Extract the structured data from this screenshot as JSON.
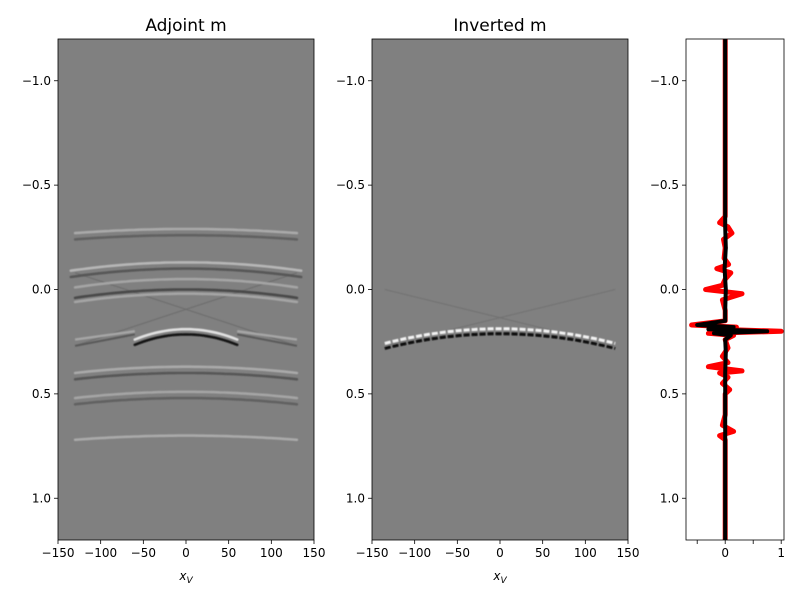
{
  "chart_data": [
    {
      "type": "heatmap",
      "title": "Adjoint m",
      "xlabel": "x",
      "xlabel_sub": "V",
      "xlim": [
        -150,
        150
      ],
      "ylim": [
        1.2,
        -1.2
      ],
      "xticks": [
        -150,
        -100,
        -50,
        0,
        50,
        100,
        150
      ],
      "yticks": [
        -1.0,
        -0.5,
        0.0,
        0.5,
        1.0
      ],
      "colormap": "gray",
      "events": [
        {
          "y": -0.29,
          "amp": 0.35,
          "half_width": 130,
          "curvature": 0.02
        },
        {
          "y": -0.26,
          "amp": -0.25,
          "half_width": 130,
          "curvature": 0.02
        },
        {
          "y": -0.13,
          "amp": 0.45,
          "half_width": 135,
          "curvature": 0.04
        },
        {
          "y": -0.1,
          "amp": -0.35,
          "half_width": 135,
          "curvature": 0.04
        },
        {
          "y": -0.05,
          "amp": 0.3,
          "half_width": 130,
          "curvature": 0.04
        },
        {
          "y": 0.0,
          "amp": -0.45,
          "half_width": 130,
          "curvature": 0.04
        },
        {
          "y": 0.02,
          "amp": 0.3,
          "half_width": 130,
          "curvature": 0.04
        },
        {
          "y": 0.19,
          "amp": 0.8,
          "half_width": 60,
          "curvature": 0.05
        },
        {
          "y": 0.215,
          "amp": -0.9,
          "half_width": 60,
          "curvature": 0.05
        },
        {
          "y": 0.37,
          "amp": 0.35,
          "half_width": 130,
          "curvature": 0.03
        },
        {
          "y": 0.4,
          "amp": -0.35,
          "half_width": 130,
          "curvature": 0.03
        },
        {
          "y": 0.49,
          "amp": 0.3,
          "half_width": 130,
          "curvature": 0.03
        },
        {
          "y": 0.52,
          "amp": -0.25,
          "half_width": 130,
          "curvature": 0.03
        },
        {
          "y": 0.7,
          "amp": 0.35,
          "half_width": 130,
          "curvature": 0.02
        }
      ],
      "flank_events": [
        {
          "y": 0.2,
          "amp": 0.3,
          "x_from": -130,
          "x_to": -60,
          "slope": 0.001
        },
        {
          "y": 0.2,
          "amp": 0.3,
          "x_from": 60,
          "x_to": 130,
          "slope": -0.001
        }
      ],
      "crossing_lines": [
        {
          "x1": -130,
          "y1": -0.08,
          "x2": 130,
          "y2": 0.27
        },
        {
          "x1": -130,
          "y1": 0.27,
          "x2": 130,
          "y2": -0.08
        }
      ]
    },
    {
      "type": "heatmap",
      "title": "Inverted m",
      "xlabel": "x",
      "xlabel_sub": "V",
      "xlim": [
        -150,
        150
      ],
      "ylim": [
        1.2,
        -1.2
      ],
      "xticks": [
        -150,
        -100,
        -50,
        0,
        50,
        100,
        150
      ],
      "yticks": [
        -1.0,
        -0.5,
        0.0,
        0.5,
        1.0
      ],
      "colormap": "gray",
      "main_event": {
        "y_center": 0.2,
        "y_edge": 0.27,
        "x_from": -135,
        "x_to": 135,
        "amp": 1.0
      },
      "crossing_lines": [
        {
          "x1": -135,
          "y1": 0.0,
          "x2": 135,
          "y2": 0.27
        },
        {
          "x1": -135,
          "y1": 0.27,
          "x2": 135,
          "y2": 0.0
        }
      ]
    },
    {
      "type": "line",
      "xlim": [
        -0.7,
        1.05
      ],
      "ylim": [
        1.2,
        -1.2
      ],
      "xticks": [
        -0.5,
        0,
        0.5,
        1
      ],
      "xtick_labels": [
        "",
        "0",
        "",
        "1"
      ],
      "yticks": [
        -1.0,
        -0.5,
        0.0,
        0.5,
        1.0
      ],
      "series": [
        {
          "color": "#ff0000",
          "linewidth": 5,
          "y": [
            -1.2,
            -0.35,
            -0.32,
            -0.3,
            -0.27,
            -0.24,
            -0.2,
            -0.15,
            -0.12,
            -0.1,
            -0.08,
            -0.05,
            -0.02,
            0.0,
            0.02,
            0.05,
            0.1,
            0.15,
            0.17,
            0.18,
            0.19,
            0.2,
            0.21,
            0.22,
            0.24,
            0.28,
            0.32,
            0.35,
            0.37,
            0.39,
            0.4,
            0.42,
            0.45,
            0.48,
            0.5,
            0.52,
            0.55,
            0.6,
            0.65,
            0.68,
            0.7,
            0.72,
            0.75,
            0.8,
            1.2
          ],
          "x": [
            0.0,
            0.0,
            -0.1,
            0.05,
            0.12,
            -0.03,
            0.0,
            -0.02,
            0.06,
            -0.15,
            0.1,
            0.0,
            -0.05,
            -0.35,
            0.3,
            -0.05,
            0.0,
            0.0,
            -0.6,
            0.2,
            -0.15,
            1.0,
            -0.3,
            0.15,
            0.0,
            0.05,
            -0.05,
            0.05,
            -0.3,
            0.3,
            -0.1,
            0.05,
            -0.05,
            0.08,
            0.0,
            0.0,
            0.0,
            0.0,
            -0.05,
            0.15,
            -0.1,
            0.0,
            0.0,
            0.0,
            0.0
          ]
        },
        {
          "color": "#000000",
          "linewidth": 4,
          "y": [
            -1.2,
            -0.3,
            -0.2,
            -0.1,
            0.0,
            0.1,
            0.15,
            0.17,
            0.18,
            0.19,
            0.2,
            0.21,
            0.22,
            0.24,
            0.3,
            0.4,
            0.5,
            0.6,
            0.7,
            1.2
          ],
          "x": [
            0.0,
            0.0,
            0.01,
            -0.01,
            0.01,
            0.0,
            0.0,
            -0.5,
            0.15,
            -0.3,
            0.75,
            -0.2,
            0.1,
            0.0,
            0.01,
            0.0,
            0.0,
            0.0,
            0.0,
            0.0
          ]
        }
      ]
    }
  ]
}
